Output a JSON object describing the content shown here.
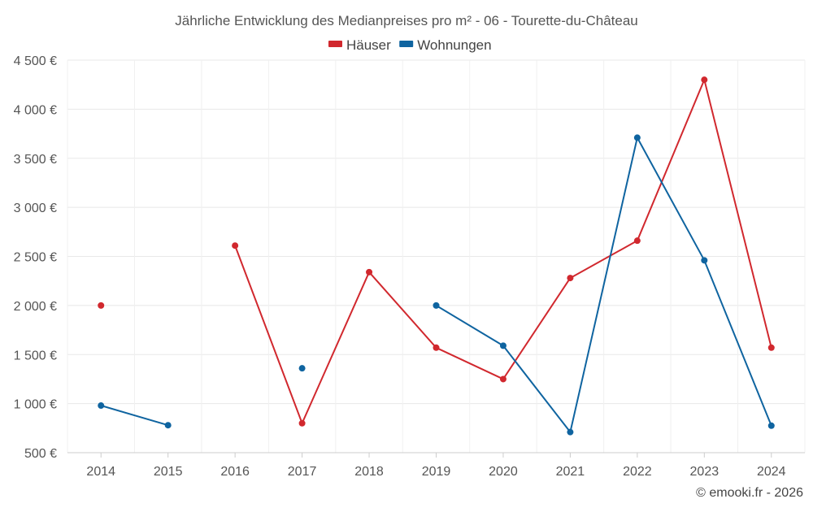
{
  "chart_data": {
    "type": "line",
    "title": "Jährliche Entwicklung des Medianpreises pro m² - 06 - Tourette-du-Château",
    "categories": [
      "2014",
      "2015",
      "2016",
      "2017",
      "2018",
      "2019",
      "2020",
      "2021",
      "2022",
      "2023",
      "2024"
    ],
    "y_ticks": [
      500,
      1000,
      1500,
      2000,
      2500,
      3000,
      3500,
      4000,
      4500
    ],
    "y_tick_labels": [
      "500 €",
      "1 000 €",
      "1 500 €",
      "2 000 €",
      "2 500 €",
      "3 000 €",
      "3 500 €",
      "4 000 €",
      "4 500 €"
    ],
    "ylim": [
      500,
      4500
    ],
    "grid": true,
    "legend_position": "top-center",
    "series": [
      {
        "name": "Häuser",
        "color": "#d1282e",
        "values": [
          2000,
          null,
          2610,
          800,
          2340,
          1570,
          1250,
          2280,
          2660,
          4300,
          1570
        ]
      },
      {
        "name": "Wohnungen",
        "color": "#0f64a0",
        "values": [
          980,
          780,
          null,
          1360,
          null,
          2000,
          1590,
          710,
          3710,
          2460,
          775
        ]
      }
    ],
    "credit": "© emooki.fr - 2026"
  }
}
